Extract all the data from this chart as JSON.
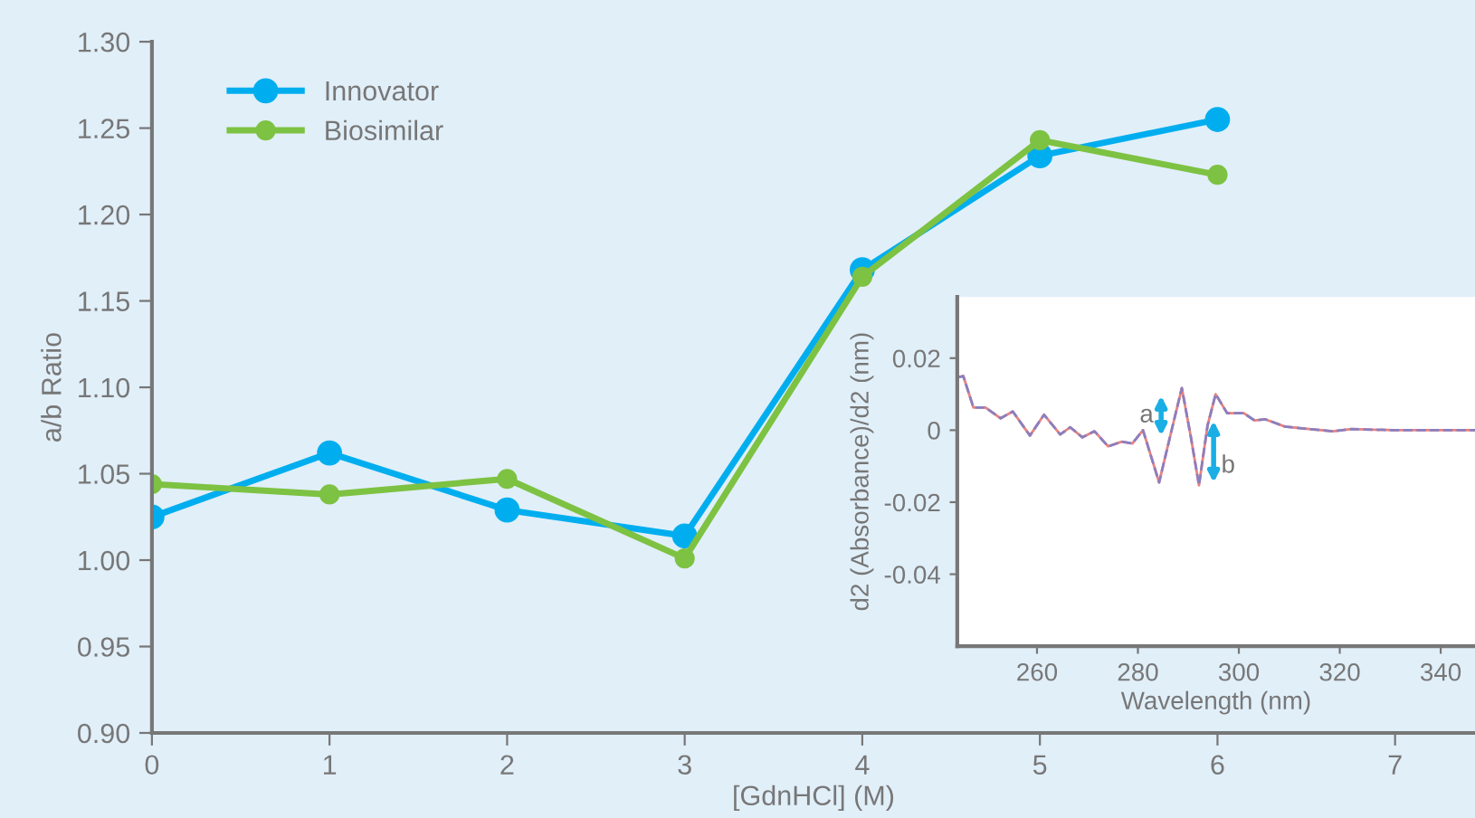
{
  "chart_data": [
    {
      "type": "line",
      "xlabel": "[GdnHCl] (M)",
      "ylabel": "a/b Ratio",
      "x": [
        0,
        1,
        2,
        3,
        4,
        5,
        6
      ],
      "series": [
        {
          "name": "Innovator",
          "color": "#00aeef",
          "values": [
            1.025,
            1.062,
            1.029,
            1.014,
            1.168,
            1.234,
            1.255
          ]
        },
        {
          "name": "Biosimilar",
          "color": "#7dc242",
          "values": [
            1.044,
            1.038,
            1.047,
            1.001,
            1.164,
            1.243,
            1.223
          ]
        }
      ],
      "xlim": [
        0,
        7.45
      ],
      "xticks": [
        0,
        1,
        2,
        3,
        4,
        5,
        6,
        7
      ],
      "ylim": [
        0.9,
        1.3
      ],
      "yticks": [
        {
          "value": 0.9,
          "label": "0.90"
        },
        {
          "value": 0.95,
          "label": "0.95"
        },
        {
          "value": 1.0,
          "label": "1.00"
        },
        {
          "value": 1.05,
          "label": "1.05"
        },
        {
          "value": 1.1,
          "label": "1.10"
        },
        {
          "value": 1.15,
          "label": "1.15"
        },
        {
          "value": 1.2,
          "label": "1.20"
        },
        {
          "value": 1.25,
          "label": "1.25"
        },
        {
          "value": 1.3,
          "label": "1.30"
        }
      ],
      "grid": false,
      "legend": "top left",
      "marker": "circle",
      "line_style": "solid"
    },
    {
      "type": "line",
      "xlabel": "Wavelength (nm)",
      "ylabel": "d2 (Absorbance)/d2 (nm)",
      "x": [
        244.4,
        245.4,
        247.4,
        249.8,
        252.8,
        255.2,
        258.6,
        261.4,
        264.6,
        266.6,
        269.0,
        271.4,
        274.1,
        276.8,
        278.9,
        281.0,
        284.2,
        286.9,
        288.7,
        290.5,
        292.1,
        293.8,
        295.4,
        297.7,
        301.0,
        303.1,
        305.3,
        309.1,
        313.9,
        318.7,
        322.3,
        330.7,
        337.8,
        346.8
      ],
      "series": [
        {
          "color": "#e8827f",
          "line_style": "solid",
          "values": [
            0.0147,
            0.015,
            0.0063,
            0.0063,
            0.0033,
            0.0052,
            -0.0015,
            0.0043,
            -0.0012,
            0.0008,
            -0.002,
            -0.0003,
            -0.0045,
            -0.0032,
            -0.0037,
            0.0,
            -0.0145,
            0.0013,
            0.0117,
            -0.002,
            -0.0153,
            0.0013,
            0.01,
            0.0047,
            0.0047,
            0.0027,
            0.003,
            0.001,
            0.0003,
            -0.0003,
            0.0003,
            0.0,
            0.0,
            0.0
          ]
        },
        {
          "color": "#8a7fc0",
          "line_style": "dashed",
          "values": [
            0.0147,
            0.015,
            0.0063,
            0.0063,
            0.0033,
            0.0052,
            -0.0015,
            0.0043,
            -0.0012,
            0.0008,
            -0.002,
            -0.0003,
            -0.0045,
            -0.0032,
            -0.0037,
            0.0,
            -0.0145,
            0.0013,
            0.0117,
            -0.002,
            -0.0153,
            0.0013,
            0.01,
            0.0047,
            0.0047,
            0.0027,
            0.003,
            0.001,
            0.0003,
            -0.0003,
            0.0003,
            0.0,
            0.0,
            0.0
          ]
        }
      ],
      "xlim": [
        244.2,
        346.8
      ],
      "xticks": [
        260,
        280,
        300,
        320,
        340
      ],
      "ylim": [
        -0.06,
        0.037
      ],
      "yticks": [
        {
          "value": 0.02,
          "label": "0.02"
        },
        {
          "value": 0,
          "label": "0"
        },
        {
          "value": -0.02,
          "label": "-0.02"
        },
        {
          "value": -0.04,
          "label": "-0.04"
        }
      ],
      "annotations": [
        {
          "text": "a",
          "x": 281.0,
          "y": 0.0
        },
        {
          "text": "b",
          "x": 295.4,
          "y": 0.01
        }
      ],
      "grid": false,
      "marker": "none"
    }
  ]
}
